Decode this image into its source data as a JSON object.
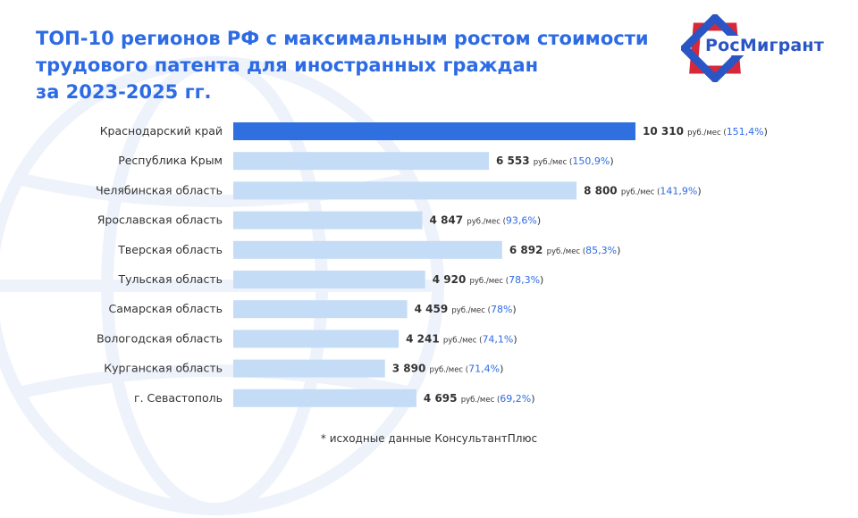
{
  "title": "ТОП-10 регионов РФ с максимальным ростом стоимости\nтрудового патента для иностранных граждан\nза 2023-2025 гг.",
  "logo": {
    "text": "РосМигрант"
  },
  "footnote": "* исходные данные КонсультантПлюс",
  "colors": {
    "accent": "#2d6be4",
    "highlight_bar": "#2f6fe0",
    "bar": "#c5dcf7",
    "text": "#333333"
  },
  "chart_data": {
    "type": "bar",
    "orientation": "horizontal",
    "unit": "руб./мес",
    "categories": [
      "Краснодарский край",
      "Республика Крым",
      "Челябинская область",
      "Ярославская область",
      "Тверская область",
      "Тульская область",
      "Самарская область",
      "Вологодская область",
      "Курганская область",
      "г. Севастополь"
    ],
    "values": [
      10310,
      6553,
      8800,
      4847,
      6892,
      4920,
      4459,
      4241,
      3890,
      4695
    ],
    "value_labels": [
      "10 310",
      "6 553",
      "8 800",
      "4 847",
      "6 892",
      "4 920",
      "4 459",
      "4 241",
      "3 890",
      "4 695"
    ],
    "growth_labels": [
      "151,4%",
      "150,9%",
      "141,9%",
      "93,6%",
      "85,3%",
      "78,3%",
      "78%",
      "74,1%",
      "71,4%",
      "69,2%"
    ],
    "highlight_index": 0,
    "xlim": [
      0,
      10310
    ],
    "grid": false,
    "legend": "none"
  }
}
